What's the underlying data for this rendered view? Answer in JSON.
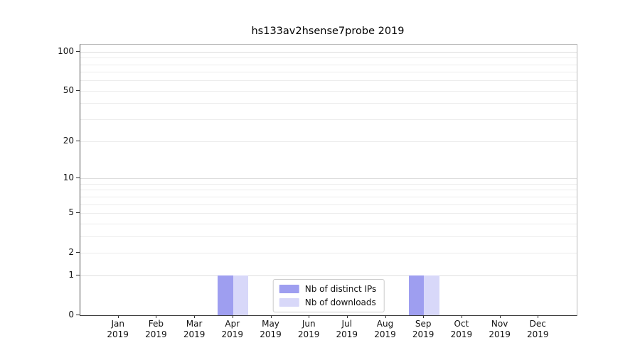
{
  "title": "hs133av2hsense7probe 2019",
  "chart_data": {
    "type": "bar",
    "title": "hs133av2hsense7probe 2019",
    "scale": "log1p",
    "xlabel": "",
    "ylabel": "",
    "year": "2019",
    "categories": [
      "Jan",
      "Feb",
      "Mar",
      "Apr",
      "May",
      "Jun",
      "Jul",
      "Aug",
      "Sep",
      "Oct",
      "Nov",
      "Dec"
    ],
    "y_ticks": [
      0,
      1,
      2,
      5,
      10,
      20,
      50,
      100
    ],
    "ylim": [
      0,
      113
    ],
    "grid": true,
    "legend_position": "lower center",
    "series": [
      {
        "name": "Nb of distinct IPs",
        "color": "#9e9ef0",
        "values": [
          0,
          0,
          0,
          1,
          0,
          0,
          0,
          0,
          1,
          0,
          0,
          0
        ]
      },
      {
        "name": "Nb of downloads",
        "color": "#d8d8f9",
        "values": [
          0,
          0,
          0,
          1,
          0,
          0,
          0,
          0,
          1,
          0,
          0,
          0
        ]
      }
    ]
  }
}
